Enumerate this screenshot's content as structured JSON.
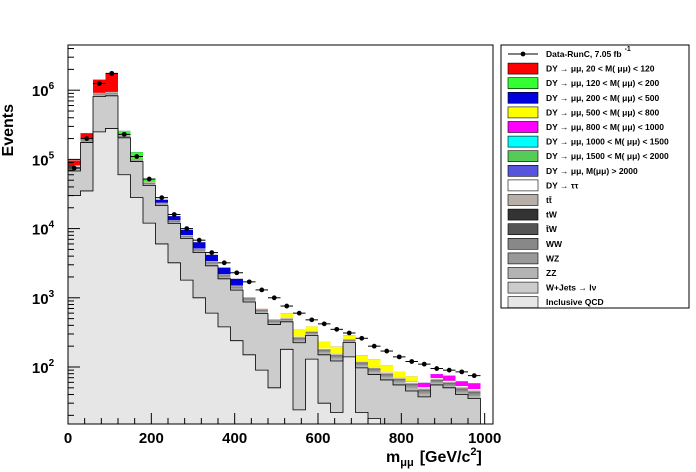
{
  "chart_data": {
    "type": "stacked-histogram",
    "xlabel": "m",
    "xlabel_sub": "μμ",
    "xlabel_unit": "[GeV/c",
    "xlabel_unit_sup": "2",
    "xlabel_unit_close": "]",
    "ylabel": "Events",
    "xlim": [
      0,
      1020
    ],
    "ylim": [
      15,
      4500000
    ],
    "y_scale": "log",
    "x_ticks": [
      0,
      200,
      400,
      600,
      800,
      1000
    ],
    "y_ticks": [
      {
        "value": 100,
        "base": "10",
        "exp": "2"
      },
      {
        "value": 1000,
        "base": "10",
        "exp": "3"
      },
      {
        "value": 10000,
        "base": "10",
        "exp": "4"
      },
      {
        "value": 100000,
        "base": "10",
        "exp": "5"
      },
      {
        "value": 1000000,
        "base": "10",
        "exp": "6"
      }
    ],
    "bin_edges": [
      0,
      30,
      60,
      90,
      120,
      150,
      180,
      210,
      240,
      270,
      300,
      330,
      360,
      390,
      420,
      450,
      480,
      510,
      540,
      570,
      600,
      630,
      660,
      690,
      720,
      750,
      780,
      810,
      840,
      870,
      900,
      930,
      960,
      990
    ],
    "data_points": {
      "name": "Data-RunC, 7.05 fb",
      "name_sup": "-1",
      "values": [
        75000,
        200000,
        1250000,
        1750000,
        230000,
        110000,
        52000,
        28000,
        16000,
        10000,
        6800,
        4500,
        3200,
        2300,
        1700,
        1300,
        1000,
        760,
        600,
        480,
        420,
        350,
        310,
        260,
        200,
        170,
        140,
        120,
        110,
        95,
        90,
        85,
        75
      ]
    },
    "stacks": {
      "qcd": [
        30000,
        35000,
        250000,
        280000,
        60000,
        28000,
        12000,
        6000,
        3200,
        1800,
        1000,
        600,
        380,
        240,
        150,
        90,
        50,
        180,
        24,
        130,
        30,
        22,
        140,
        22,
        18,
        15,
        15,
        15,
        12,
        15,
        15,
        15,
        15
      ],
      "wjets": [
        38000,
        140000,
        560000,
        550000,
        145000,
        65000,
        30000,
        15500,
        8700,
        5400,
        3500,
        2300,
        1500,
        1050,
        720,
        500,
        360,
        270,
        200,
        155,
        120,
        100,
        85,
        75,
        60,
        50,
        40,
        30,
        25,
        40,
        35,
        25,
        20
      ],
      "zz": [
        4000,
        6000,
        40000,
        42000,
        6000,
        3000,
        1600,
        700,
        420,
        300,
        220,
        160,
        100,
        70,
        50,
        35,
        25,
        20,
        17,
        15,
        12,
        11,
        10,
        8,
        7,
        6,
        5,
        5,
        4,
        4,
        3,
        3,
        3
      ],
      "wz": [
        2000,
        3000,
        20000,
        22000,
        3000,
        1500,
        800,
        350,
        210,
        150,
        110,
        80,
        50,
        35,
        25,
        18,
        13,
        10,
        9,
        8,
        6,
        6,
        5,
        4,
        4,
        3,
        3,
        3,
        2,
        2,
        2,
        2,
        2
      ],
      "ww": [
        2000,
        2500,
        15000,
        16000,
        2500,
        1200,
        650,
        300,
        180,
        130,
        95,
        70,
        45,
        30,
        22,
        16,
        12,
        9,
        8,
        7,
        5,
        5,
        4,
        4,
        3,
        3,
        2,
        2,
        2,
        2,
        2,
        2,
        2
      ],
      "tw": [
        1500,
        1800,
        8000,
        9000,
        1600,
        800,
        450,
        200,
        120,
        90,
        65,
        48,
        32,
        22,
        16,
        12,
        9,
        7,
        6,
        5,
        4,
        4,
        3,
        3,
        3,
        2,
        2,
        2,
        2,
        2,
        2,
        2,
        2
      ],
      "ttbar": [
        2000,
        2500,
        12000,
        14000,
        2500,
        1200,
        700,
        300,
        180,
        130,
        95,
        70,
        45,
        30,
        22,
        16,
        12,
        9,
        8,
        7,
        5,
        5,
        4,
        4,
        3,
        3,
        2,
        2,
        2,
        2,
        2,
        2,
        2
      ],
      "dytautau": [
        2000,
        2200,
        10000,
        11000,
        2000,
        1000,
        500,
        200,
        120,
        80,
        55,
        40,
        25,
        18,
        12,
        9,
        7,
        5,
        4,
        3,
        3,
        3,
        2,
        2,
        2,
        2,
        2,
        2,
        2,
        2,
        2,
        2,
        2
      ],
      "dy20": [
        15000,
        45000,
        500000,
        800000,
        0,
        0,
        0,
        0,
        0,
        0,
        0,
        0,
        0,
        0,
        0,
        0,
        0,
        0,
        0,
        0,
        0,
        0,
        0,
        0,
        0,
        0,
        0,
        0,
        0,
        0,
        0,
        0,
        0
      ],
      "dy120": [
        0,
        0,
        0,
        0,
        35000,
        25000,
        6000,
        0,
        0,
        0,
        0,
        0,
        0,
        0,
        0,
        0,
        0,
        0,
        0,
        0,
        0,
        0,
        0,
        0,
        0,
        0,
        0,
        0,
        0,
        0,
        0,
        0,
        0
      ],
      "dy200": [
        0,
        0,
        0,
        0,
        0,
        0,
        0,
        2500,
        2000,
        1500,
        1200,
        800,
        550,
        380,
        0,
        0,
        0,
        0,
        0,
        0,
        0,
        0,
        0,
        0,
        0,
        0,
        0,
        0,
        0,
        0,
        0,
        0,
        0
      ],
      "dy500": [
        0,
        0,
        0,
        0,
        0,
        0,
        0,
        0,
        0,
        0,
        0,
        0,
        0,
        0,
        0,
        0,
        0,
        90,
        70,
        55,
        45,
        40,
        35,
        25,
        30,
        20,
        15,
        12,
        0,
        0,
        0,
        0,
        0
      ],
      "dy800": [
        0,
        0,
        0,
        0,
        0,
        0,
        0,
        0,
        0,
        0,
        0,
        0,
        0,
        0,
        0,
        0,
        0,
        0,
        0,
        0,
        0,
        0,
        0,
        0,
        0,
        0,
        0,
        0,
        8,
        10,
        12,
        9,
        10
      ],
      "dy1000": [
        0,
        0,
        0,
        0,
        0,
        0,
        0,
        0,
        0,
        0,
        0,
        0,
        0,
        0,
        0,
        0,
        0,
        0,
        0,
        0,
        0,
        0,
        0,
        0,
        0,
        0,
        0,
        0,
        0,
        0,
        0,
        0,
        0
      ],
      "dy1500": [
        0,
        0,
        0,
        0,
        0,
        0,
        0,
        0,
        0,
        0,
        0,
        0,
        0,
        0,
        0,
        0,
        0,
        0,
        0,
        0,
        0,
        0,
        0,
        0,
        0,
        0,
        0,
        0,
        0,
        0,
        0,
        0,
        0
      ],
      "dy2000": [
        0,
        0,
        0,
        0,
        0,
        0,
        0,
        0,
        0,
        0,
        0,
        0,
        0,
        0,
        0,
        0,
        0,
        0,
        0,
        0,
        0,
        0,
        0,
        0,
        0,
        0,
        0,
        0,
        0,
        0,
        0,
        0,
        0
      ]
    },
    "stack_order": [
      "qcd",
      "wjets",
      "zz",
      "wz",
      "ww",
      "tw",
      "ttbar",
      "dytautau",
      "dy20",
      "dy120",
      "dy200",
      "dy500",
      "dy800",
      "dy1000",
      "dy1500",
      "dy2000"
    ],
    "colors": {
      "qcd": "#e6e6e6",
      "wjets": "#cccccc",
      "zz": "#b3b3b3",
      "wz": "#999999",
      "ww": "#888888",
      "tw": "#6f6f6f",
      "ttbar": "#b8b0a8",
      "dytautau": "#ffffff",
      "dy20": "#ff0000",
      "dy120": "#33ff33",
      "dy200": "#0000dd",
      "dy500": "#ffff00",
      "dy800": "#ff00ff",
      "dy1000": "#00ffff",
      "dy1500": "#55cc55",
      "dy2000": "#5555dd",
      "twbar": "#555555",
      "tw_dark": "#333333",
      "data": "#000000"
    },
    "legend": [
      {
        "key": "data",
        "label": "Data-RunC, 7.05 fb",
        "sup": "-1",
        "kind": "marker"
      },
      {
        "key": "dy20",
        "label": "DY → μμ, 20 < M( μμ) <  120",
        "kind": "box"
      },
      {
        "key": "dy120",
        "label": "DY → μμ, 120 < M( μμ) <  200",
        "kind": "box"
      },
      {
        "key": "dy200",
        "label": "DY → μμ, 200 < M( μμ) <  500",
        "kind": "box"
      },
      {
        "key": "dy500",
        "label": "DY → μμ, 500 < M( μμ) <  800",
        "kind": "box"
      },
      {
        "key": "dy800",
        "label": "DY → μμ, 800 < M( μμ) < 1000",
        "kind": "box"
      },
      {
        "key": "dy1000",
        "label": "DY → μμ, 1000 < M( μμ) < 1500",
        "kind": "box"
      },
      {
        "key": "dy1500",
        "label": "DY → μμ, 1500 < M( μμ) < 2000",
        "kind": "box"
      },
      {
        "key": "dy2000",
        "label": "DY → μμ, M(μμ) > 2000",
        "kind": "box"
      },
      {
        "key": "dytautau",
        "label": "DY → ττ",
        "kind": "box"
      },
      {
        "key": "ttbar",
        "label": "tt̄",
        "kind": "box"
      },
      {
        "key": "tw_dark",
        "label": "tW",
        "kind": "box"
      },
      {
        "key": "twbar",
        "label": "t̄W",
        "kind": "box"
      },
      {
        "key": "ww",
        "label": "WW",
        "kind": "box"
      },
      {
        "key": "wz",
        "label": "WZ",
        "kind": "box"
      },
      {
        "key": "zz",
        "label": "ZZ",
        "kind": "box"
      },
      {
        "key": "wjets",
        "label": "W+Jets  → lν",
        "kind": "box"
      },
      {
        "key": "qcd",
        "label": "Inclusive QCD",
        "kind": "box"
      }
    ]
  }
}
